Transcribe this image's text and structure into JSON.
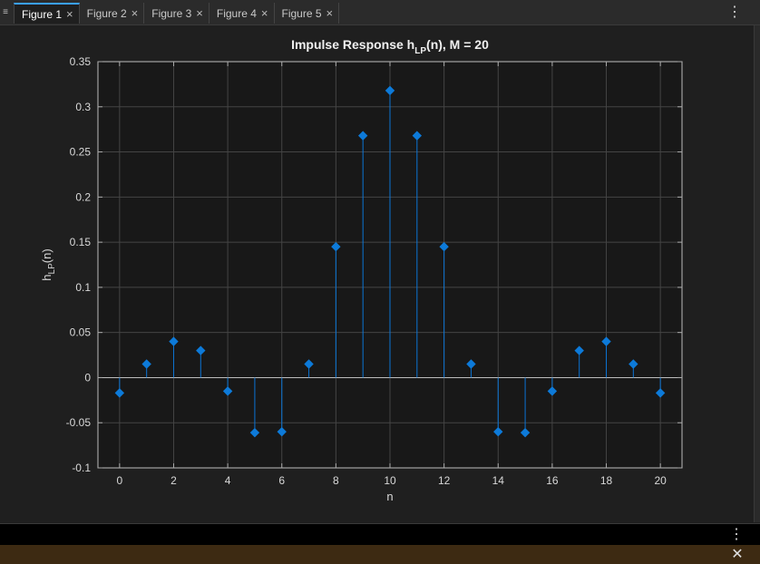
{
  "tabs": [
    {
      "label": "Figure 1",
      "active": true
    },
    {
      "label": "Figure 2",
      "active": false
    },
    {
      "label": "Figure 3",
      "active": false
    },
    {
      "label": "Figure 4",
      "active": false
    },
    {
      "label": "Figure 5",
      "active": false
    }
  ],
  "icons": {
    "tab_menu": "menu-icon",
    "tab_close": "close-icon",
    "more": "more-vertical-icon",
    "notification_close": "close-icon"
  },
  "colors": {
    "plot_bg": "#181818",
    "stem": "#0b74d4",
    "marker": "#0d7ad9",
    "grid": "#444444",
    "notification_bg": "#3d2a12"
  },
  "chart_data": {
    "type": "stem",
    "title": "Impulse Response h_LP(n), M = 20",
    "title_main": "Impulse Response h",
    "title_sub": "LP",
    "title_rest": "(n), M = 20",
    "xlabel": "n",
    "ylabel_main": "h",
    "ylabel_sub": "LP",
    "ylabel_rest": "(n)",
    "xlim": [
      -0.8,
      20.8
    ],
    "ylim": [
      -0.1,
      0.35
    ],
    "xticks": [
      0,
      2,
      4,
      6,
      8,
      10,
      12,
      14,
      16,
      18,
      20
    ],
    "yticks": [
      -0.1,
      -0.05,
      0,
      0.05,
      0.1,
      0.15,
      0.2,
      0.25,
      0.3,
      0.35
    ],
    "grid": true,
    "marker": "diamond",
    "x": [
      0,
      1,
      2,
      3,
      4,
      5,
      6,
      7,
      8,
      9,
      10,
      11,
      12,
      13,
      14,
      15,
      16,
      17,
      18,
      19,
      20
    ],
    "values": [
      -0.017,
      0.015,
      0.04,
      0.03,
      -0.015,
      -0.061,
      -0.06,
      0.015,
      0.145,
      0.268,
      0.318,
      0.268,
      0.145,
      0.015,
      -0.06,
      -0.061,
      -0.015,
      0.03,
      0.04,
      0.015,
      -0.017
    ]
  }
}
